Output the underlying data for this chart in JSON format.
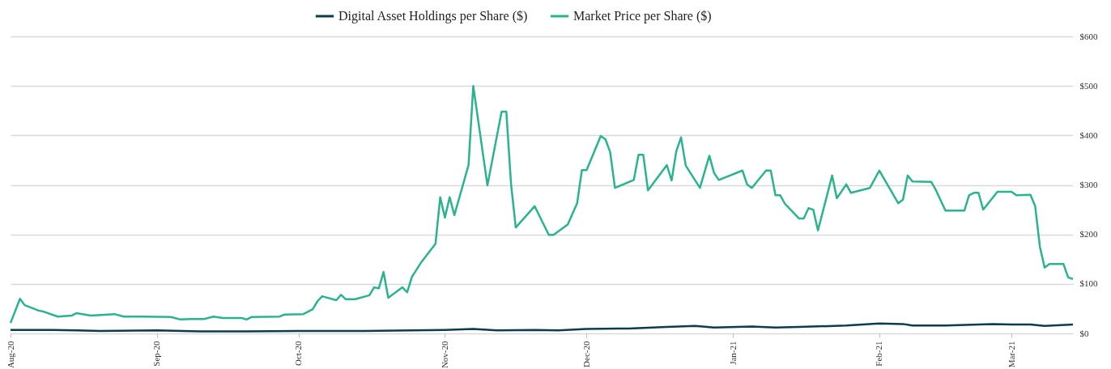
{
  "chart_data": {
    "type": "line",
    "xlim": [
      "2020-08-01",
      "2021-03-14"
    ],
    "xticks": [
      {
        "value": "2020-08-01",
        "label": "Aug-20"
      },
      {
        "value": "2020-09-01",
        "label": "Sep-20"
      },
      {
        "value": "2020-10-01",
        "label": "Oct-20"
      },
      {
        "value": "2020-11-01",
        "label": "Nov-20"
      },
      {
        "value": "2020-12-01",
        "label": "Dec-20"
      },
      {
        "value": "2021-01-01",
        "label": "Jan-21"
      },
      {
        "value": "2021-02-01",
        "label": "Feb-21"
      },
      {
        "value": "2021-03-01",
        "label": "Mar-21"
      }
    ],
    "ylim": [
      0,
      600
    ],
    "yticks": [
      {
        "value": 0,
        "label": "$0"
      },
      {
        "value": 100,
        "label": "$100"
      },
      {
        "value": 200,
        "label": "$200"
      },
      {
        "value": 300,
        "label": "$300"
      },
      {
        "value": 400,
        "label": "$400"
      },
      {
        "value": 500,
        "label": "$500"
      },
      {
        "value": 600,
        "label": "$600"
      }
    ],
    "grid": "y",
    "legend": "top",
    "marker": "none",
    "line_style": "solid",
    "series": [
      {
        "name": "Digital Asset Holdings per Share ($)",
        "color": "#0b3d4c",
        "x": [
          "2020-08-01",
          "2020-08-10",
          "2020-08-15",
          "2020-08-20",
          "2020-09-01",
          "2020-09-10",
          "2020-09-20",
          "2020-10-01",
          "2020-10-15",
          "2020-10-25",
          "2020-11-01",
          "2020-11-07",
          "2020-11-12",
          "2020-11-20",
          "2020-11-25",
          "2020-12-01",
          "2020-12-10",
          "2020-12-18",
          "2020-12-24",
          "2020-12-28",
          "2021-01-05",
          "2021-01-10",
          "2021-01-15",
          "2021-01-25",
          "2021-02-01",
          "2021-02-06",
          "2021-02-08",
          "2021-02-15",
          "2021-02-25",
          "2021-03-01",
          "2021-03-05",
          "2021-03-08",
          "2021-03-14"
        ],
        "values": [
          7,
          7,
          6,
          5,
          6,
          4,
          4,
          5,
          5,
          6,
          7,
          9,
          6,
          7,
          6,
          9,
          10,
          13,
          15,
          12,
          14,
          12,
          13,
          16,
          20,
          19,
          16,
          16,
          19,
          18,
          18,
          15,
          18
        ]
      },
      {
        "name": "Market Price per Share ($)",
        "color": "#2bb38f",
        "x": [
          "2020-08-01",
          "2020-08-03",
          "2020-08-04",
          "2020-08-07",
          "2020-08-08",
          "2020-08-11",
          "2020-08-14",
          "2020-08-15",
          "2020-08-18",
          "2020-08-23",
          "2020-08-25",
          "2020-08-29",
          "2020-09-04",
          "2020-09-06",
          "2020-09-08",
          "2020-09-11",
          "2020-09-13",
          "2020-09-15",
          "2020-09-19",
          "2020-09-20",
          "2020-09-21",
          "2020-09-27",
          "2020-09-28",
          "2020-10-02",
          "2020-10-04",
          "2020-10-05",
          "2020-10-06",
          "2020-10-09",
          "2020-10-10",
          "2020-10-11",
          "2020-10-13",
          "2020-10-16",
          "2020-10-17",
          "2020-10-18",
          "2020-10-19",
          "2020-10-20",
          "2020-10-23",
          "2020-10-24",
          "2020-10-25",
          "2020-10-27",
          "2020-10-30",
          "2020-10-31",
          "2020-11-01",
          "2020-11-02",
          "2020-11-03",
          "2020-11-06",
          "2020-11-07",
          "2020-11-10",
          "2020-11-13",
          "2020-11-14",
          "2020-11-15",
          "2020-11-16",
          "2020-11-20",
          "2020-11-23",
          "2020-11-24",
          "2020-11-27",
          "2020-11-29",
          "2020-11-30",
          "2020-12-01",
          "2020-12-04",
          "2020-12-05",
          "2020-12-06",
          "2020-12-07",
          "2020-12-11",
          "2020-12-12",
          "2020-12-13",
          "2020-12-14",
          "2020-12-18",
          "2020-12-19",
          "2020-12-20",
          "2020-12-21",
          "2020-12-22",
          "2020-12-25",
          "2020-12-27",
          "2020-12-28",
          "2020-12-29",
          "2021-01-03",
          "2021-01-04",
          "2021-01-05",
          "2021-01-08",
          "2021-01-09",
          "2021-01-10",
          "2021-01-11",
          "2021-01-12",
          "2021-01-15",
          "2021-01-16",
          "2021-01-17",
          "2021-01-18",
          "2021-01-19",
          "2021-01-22",
          "2021-01-23",
          "2021-01-25",
          "2021-01-26",
          "2021-01-30",
          "2021-02-01",
          "2021-02-05",
          "2021-02-06",
          "2021-02-07",
          "2021-02-08",
          "2021-02-12",
          "2021-02-13",
          "2021-02-15",
          "2021-02-19",
          "2021-02-20",
          "2021-02-21",
          "2021-02-22",
          "2021-02-23",
          "2021-02-26",
          "2021-03-01",
          "2021-03-02",
          "2021-03-05",
          "2021-03-06",
          "2021-03-07",
          "2021-03-08",
          "2021-03-09",
          "2021-03-12",
          "2021-03-13",
          "2021-03-14"
        ],
        "values": [
          21,
          70,
          57,
          46,
          44,
          34,
          36,
          41,
          36,
          39,
          34,
          34,
          33,
          28,
          29,
          29,
          34,
          31,
          31,
          28,
          33,
          34,
          38,
          39,
          49,
          65,
          75,
          67,
          78,
          69,
          69,
          77,
          93,
          91,
          124,
          72,
          93,
          83,
          114,
          144,
          181,
          275,
          234,
          275,
          239,
          340,
          500,
          299,
          448,
          448,
          302,
          214,
          257,
          199,
          199,
          220,
          263,
          330,
          330,
          399,
          392,
          366,
          294,
          310,
          361,
          361,
          289,
          340,
          309,
          368,
          396,
          339,
          294,
          359,
          324,
          310,
          329,
          301,
          294,
          329,
          329,
          279,
          279,
          262,
          232,
          232,
          253,
          250,
          208,
          319,
          273,
          301,
          284,
          294,
          329,
          263,
          270,
          319,
          307,
          306,
          289,
          248,
          248,
          279,
          284,
          284,
          250,
          286,
          286,
          279,
          280,
          257,
          175,
          133,
          140,
          140,
          113,
          110
        ]
      }
    ]
  }
}
